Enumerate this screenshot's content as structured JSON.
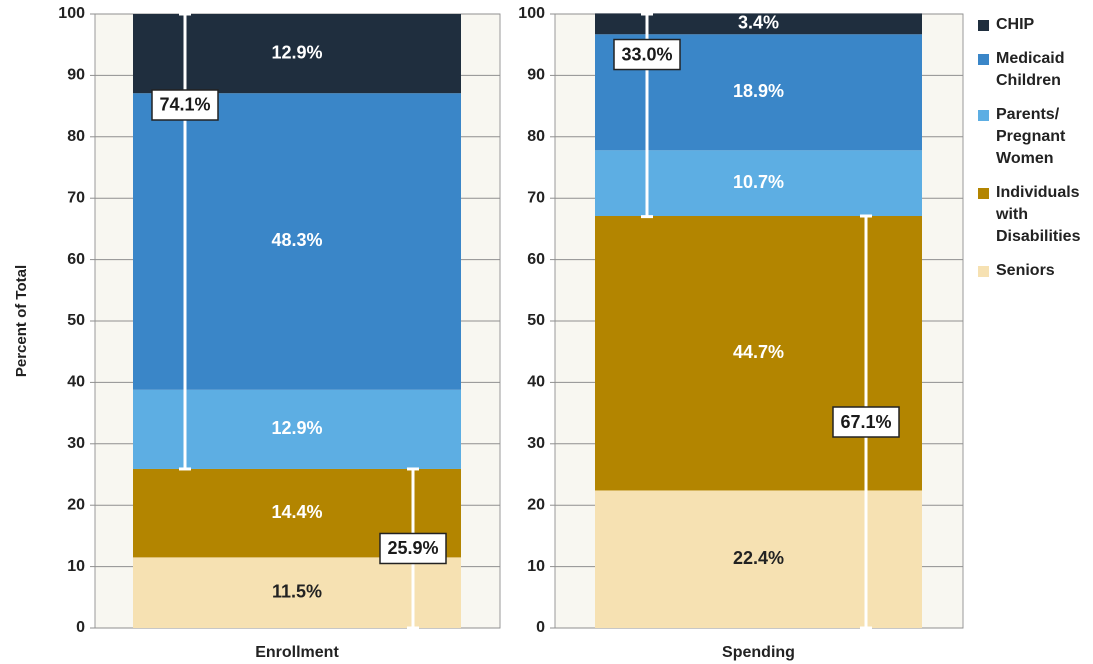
{
  "chart_data": [
    {
      "type": "bar",
      "stacked": true,
      "y_label": "Percent of Total",
      "categories": [
        "Enrollment"
      ],
      "ylim": [
        0,
        100
      ],
      "yticks": [
        0,
        10,
        20,
        30,
        40,
        50,
        60,
        70,
        80,
        90,
        100
      ],
      "grid": true,
      "series": [
        {
          "name": "CHIP",
          "color": "#1f2e3e",
          "values": [
            12.9
          ],
          "value_labels": [
            "12.9%"
          ]
        },
        {
          "name": "Medicaid Children",
          "color": "#3a86c8",
          "values": [
            48.3
          ],
          "value_labels": [
            "48.3%"
          ]
        },
        {
          "name": "Parents/ Pregnant Women",
          "color": "#5daee3",
          "values": [
            12.9
          ],
          "value_labels": [
            "12.9%"
          ]
        },
        {
          "name": "Individuals with Disabilities",
          "color": "#b38500",
          "values": [
            14.4
          ],
          "value_labels": [
            "14.4%"
          ]
        },
        {
          "name": "Seniors",
          "color": "#f6e1b2",
          "values": [
            11.5
          ],
          "value_labels": [
            "11.5%"
          ]
        }
      ],
      "brackets": [
        {
          "value": 74.1,
          "label": "74.1%",
          "align": "top"
        },
        {
          "value": 25.9,
          "label": "25.9%",
          "align": "bottom"
        }
      ]
    },
    {
      "type": "bar",
      "stacked": true,
      "categories": [
        "Spending"
      ],
      "ylim": [
        0,
        100
      ],
      "yticks": [
        0,
        10,
        20,
        30,
        40,
        50,
        60,
        70,
        80,
        90,
        100
      ],
      "grid": true,
      "legend": "right",
      "series": [
        {
          "name": "CHIP",
          "color": "#1f2e3e",
          "values": [
            3.4
          ],
          "value_labels": [
            "3.4%"
          ]
        },
        {
          "name": "Medicaid Children",
          "color": "#3a86c8",
          "values": [
            18.9
          ],
          "value_labels": [
            "18.9%"
          ]
        },
        {
          "name": "Parents/ Pregnant Women",
          "color": "#5daee3",
          "values": [
            10.7
          ],
          "value_labels": [
            "10.7%"
          ]
        },
        {
          "name": "Individuals with Disabilities",
          "color": "#b38500",
          "values": [
            44.7
          ],
          "value_labels": [
            "44.7%"
          ]
        },
        {
          "name": "Seniors",
          "color": "#f6e1b2",
          "values": [
            22.4
          ],
          "value_labels": [
            "22.4%"
          ]
        }
      ],
      "brackets": [
        {
          "value": 33.0,
          "label": "33.0%",
          "align": "top"
        },
        {
          "value": 67.1,
          "label": "67.1%",
          "align": "bottom"
        }
      ]
    }
  ]
}
